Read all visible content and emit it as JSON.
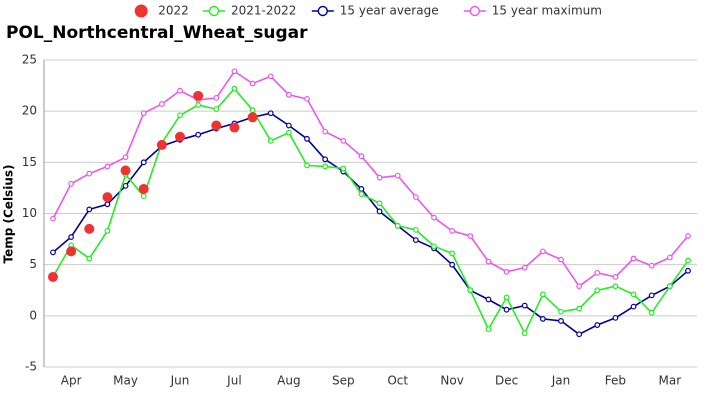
{
  "chart_data": {
    "type": "line",
    "title": "POL_Northcentral_Wheat_sugar",
    "y_label": "Temp (Celsius)",
    "categories": [
      null,
      "Apr",
      null,
      null,
      "May",
      null,
      null,
      "Jun",
      null,
      null,
      "Jul",
      null,
      null,
      "Aug",
      null,
      null,
      "Sep",
      null,
      null,
      "Oct",
      null,
      null,
      "Nov",
      null,
      null,
      "Dec",
      null,
      null,
      "Jan",
      null,
      null,
      "Feb",
      null,
      null,
      "Mar",
      null
    ],
    "ylim": [
      -5,
      25
    ],
    "yticks": [
      -5,
      0,
      5,
      10,
      15,
      20,
      25
    ],
    "grid": true,
    "legend": "top",
    "series": [
      {
        "name": "2022",
        "color": "#ee3333",
        "mode": "markers",
        "values": [
          3.8,
          6.3,
          8.5,
          11.6,
          14.2,
          12.4,
          16.7,
          17.5,
          21.5,
          18.6,
          18.4,
          19.4,
          null,
          null,
          null,
          null,
          null,
          null,
          null,
          null,
          null,
          null,
          null,
          null,
          null,
          null,
          null,
          null,
          null,
          null,
          null,
          null,
          null,
          null,
          null,
          null
        ]
      },
      {
        "name": "2021-2022",
        "color": "#22ee22",
        "mode": "lines+markers",
        "values": [
          3.8,
          6.9,
          5.6,
          8.3,
          13.8,
          11.7,
          16.9,
          19.6,
          20.6,
          20.2,
          22.2,
          20.1,
          17.1,
          17.9,
          14.7,
          14.6,
          14.4,
          11.9,
          11.0,
          8.8,
          8.4,
          6.8,
          6.1,
          2.5,
          -1.3,
          1.8,
          -1.7,
          2.1,
          0.4,
          0.7,
          2.5,
          2.9,
          2.1,
          0.3,
          2.9,
          5.4
        ]
      },
      {
        "name": "15 year average",
        "color": "#000099",
        "mode": "lines+markers",
        "values": [
          6.2,
          7.7,
          10.4,
          10.9,
          12.7,
          15.0,
          16.6,
          17.2,
          17.7,
          18.3,
          18.8,
          19.4,
          19.8,
          18.6,
          17.3,
          15.3,
          14.1,
          12.4,
          10.2,
          8.8,
          7.4,
          6.6,
          5.0,
          2.5,
          1.6,
          0.6,
          1.0,
          -0.3,
          -0.5,
          -1.8,
          -0.9,
          -0.2,
          0.9,
          2.0,
          2.9,
          4.4
        ]
      },
      {
        "name": "15 year maximum",
        "color": "#ee55ee",
        "mode": "lines+markers",
        "values": [
          9.5,
          12.9,
          13.9,
          14.6,
          15.5,
          19.8,
          20.7,
          22.0,
          21.1,
          21.3,
          23.9,
          22.7,
          23.4,
          21.6,
          21.2,
          18.0,
          17.1,
          15.6,
          13.5,
          13.7,
          11.6,
          9.6,
          8.3,
          7.8,
          5.3,
          4.3,
          4.7,
          6.3,
          5.5,
          2.9,
          4.2,
          3.8,
          5.6,
          4.9,
          5.7,
          7.8
        ]
      }
    ]
  }
}
